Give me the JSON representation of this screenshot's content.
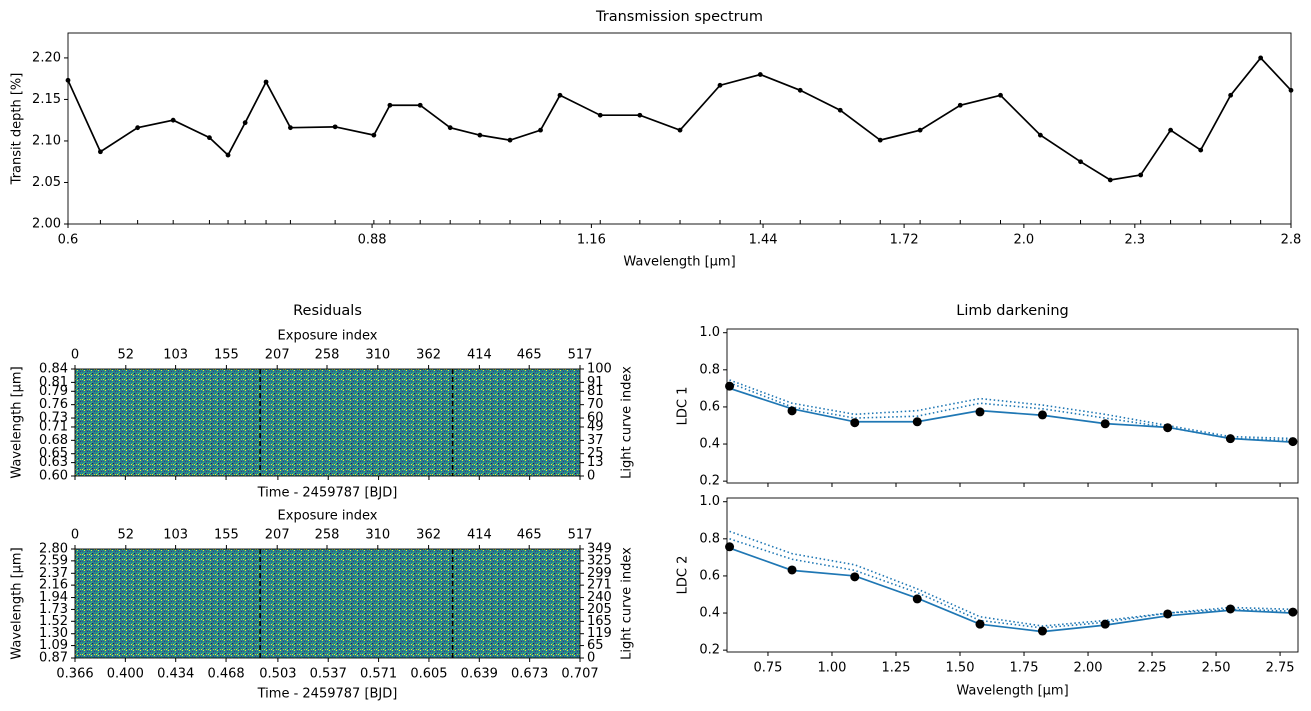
{
  "chart_data": [
    {
      "type": "line",
      "title": "Transmission spectrum",
      "xlabel": "Wavelength [μm]",
      "ylabel": "Transit depth [%]",
      "xscale": "log",
      "xlim": [
        0.6,
        2.8
      ],
      "ylim": [
        2.0,
        2.23
      ],
      "xticks": [
        0.6,
        0.88,
        1.16,
        1.44,
        1.72,
        {
          "value": 2,
          "label": "2.0"
        },
        2.3,
        2.8
      ],
      "yticks": [
        {
          "value": 2,
          "label": "2.00"
        },
        2.05,
        {
          "value": 2.1,
          "label": "2.10"
        },
        2.15,
        {
          "value": 2.2,
          "label": "2.20"
        }
      ],
      "x": [
        0.6,
        0.625,
        0.655,
        0.685,
        0.717,
        0.734,
        0.75,
        0.77,
        0.794,
        0.84,
        0.882,
        0.9,
        0.935,
        0.971,
        1.008,
        1.047,
        1.088,
        1.115,
        1.173,
        1.233,
        1.297,
        1.364,
        1.435,
        1.509,
        1.587,
        1.669,
        1.755,
        1.846,
        1.942,
        2.042,
        2.148,
        2.23,
        2.317,
        2.406,
        2.499,
        2.595,
        2.695,
        2.8
      ],
      "values": [
        2.173,
        2.087,
        2.116,
        2.125,
        2.104,
        2.083,
        2.122,
        2.171,
        2.116,
        2.117,
        2.107,
        2.143,
        2.143,
        2.116,
        2.107,
        2.101,
        2.113,
        2.155,
        2.131,
        2.131,
        2.113,
        2.167,
        2.18,
        2.161,
        2.137,
        2.101,
        2.113,
        2.143,
        2.155,
        2.107,
        2.075,
        2.053,
        2.059,
        2.113,
        2.089,
        2.155,
        2.2,
        2.161
      ],
      "color": "#000000",
      "markers": true,
      "rug": true
    },
    {
      "type": "heatmap",
      "title": "Residuals",
      "xlabel": "Time - 2459787 [BJD]",
      "ylabel": "Wavelength [μm]",
      "x2label": "Exposure index",
      "y2label": "Light curve index",
      "xlim": [
        0.366,
        0.707
      ],
      "x2lim": [
        0,
        517
      ],
      "x2ticks": [
        0,
        52,
        103,
        155,
        207,
        258,
        310,
        362,
        414,
        465,
        517
      ],
      "ylim": [
        0.6,
        0.84
      ],
      "yticks": [
        {
          "value": 0.6,
          "label": "0.60"
        },
        0.63,
        0.65,
        0.68,
        0.71,
        0.73,
        0.76,
        0.79,
        0.81,
        0.84
      ],
      "y2ticks": [
        0,
        13,
        25,
        37,
        49,
        60,
        70,
        81,
        91,
        100
      ],
      "vlines": [
        0.491,
        0.621
      ],
      "vline_color": "#000000"
    },
    {
      "type": "heatmap",
      "xlabel": "Time - 2459787 [BJD]",
      "ylabel": "Wavelength [μm]",
      "x2label": "Exposure index",
      "y2label": "Light curve index",
      "xlim": [
        0.366,
        0.707
      ],
      "xticks": [
        0.366,
        {
          "value": 0.4,
          "label": "0.400"
        },
        0.434,
        0.468,
        0.503,
        0.537,
        0.571,
        0.605,
        0.639,
        0.673,
        0.707
      ],
      "x2lim": [
        0,
        517
      ],
      "x2ticks": [
        0,
        52,
        103,
        155,
        207,
        258,
        310,
        362,
        414,
        465,
        517
      ],
      "ylim": [
        0.87,
        2.8
      ],
      "yticks": [
        0.87,
        1.09,
        {
          "value": 1.3,
          "label": "1.30"
        },
        1.52,
        1.73,
        1.94,
        2.16,
        2.37,
        2.59,
        {
          "value": 2.8,
          "label": "2.80"
        }
      ],
      "y2ticks": [
        0,
        65,
        119,
        165,
        205,
        240,
        271,
        299,
        325,
        349
      ],
      "vlines": [
        0.491,
        0.621
      ],
      "vline_color": "#000000"
    },
    {
      "type": "line",
      "title": "Limb darkening",
      "ylabel": "LDC 1",
      "xlim": [
        0.59,
        2.82
      ],
      "ylim": [
        0.19,
        1.02
      ],
      "yticks": [
        0.2,
        0.4,
        0.6,
        0.8,
        {
          "value": 1,
          "label": "1.0"
        }
      ],
      "x": [
        0.6,
        0.844,
        1.089,
        1.333,
        1.578,
        1.822,
        2.067,
        2.311,
        2.556,
        2.8
      ],
      "series": [
        {
          "color": "#1f77b4",
          "style": "dotted",
          "values": [
            0.745,
            0.62,
            0.56,
            0.58,
            0.645,
            0.61,
            0.56,
            0.5,
            0.44,
            0.43
          ]
        },
        {
          "color": "#1f77b4",
          "style": "dotted",
          "values": [
            0.73,
            0.6,
            0.54,
            0.55,
            0.62,
            0.59,
            0.54,
            0.49,
            0.43,
            0.42
          ]
        },
        {
          "color": "#1f77b4",
          "style": "solid",
          "values": [
            0.7,
            0.59,
            0.52,
            0.52,
            0.58,
            0.555,
            0.51,
            0.49,
            0.43,
            0.41
          ]
        },
        {
          "color": "#000000",
          "style": "markers",
          "values": [
            0.712,
            0.579,
            0.515,
            0.52,
            0.573,
            0.557,
            0.509,
            0.488,
            0.429,
            0.413
          ]
        }
      ]
    },
    {
      "type": "line",
      "ylabel": "LDC 2",
      "xlabel": "Wavelength [μm]",
      "xlim": [
        0.59,
        2.82
      ],
      "ylim": [
        0.19,
        1.02
      ],
      "xticks": [
        0.75,
        {
          "value": 1,
          "label": "1.00"
        },
        1.25,
        {
          "value": 1.5,
          "label": "1.50"
        },
        1.75,
        {
          "value": 2,
          "label": "2.00"
        },
        2.25,
        {
          "value": 2.5,
          "label": "2.50"
        },
        2.75
      ],
      "yticks": [
        0.2,
        0.4,
        0.6,
        0.8,
        {
          "value": 1,
          "label": "1.0"
        }
      ],
      "x": [
        0.6,
        0.844,
        1.089,
        1.333,
        1.578,
        1.822,
        2.067,
        2.311,
        2.556,
        2.8
      ],
      "series": [
        {
          "color": "#1f77b4",
          "style": "dotted",
          "values": [
            0.84,
            0.72,
            0.66,
            0.53,
            0.38,
            0.33,
            0.36,
            0.4,
            0.43,
            0.42
          ]
        },
        {
          "color": "#1f77b4",
          "style": "dotted",
          "values": [
            0.8,
            0.69,
            0.63,
            0.51,
            0.36,
            0.32,
            0.35,
            0.4,
            0.42,
            0.41
          ]
        },
        {
          "color": "#1f77b4",
          "style": "solid",
          "values": [
            0.75,
            0.63,
            0.6,
            0.48,
            0.34,
            0.3,
            0.335,
            0.385,
            0.415,
            0.4
          ]
        },
        {
          "color": "#000000",
          "style": "markers",
          "values": [
            0.757,
            0.632,
            0.595,
            0.476,
            0.34,
            0.303,
            0.34,
            0.395,
            0.422,
            0.405
          ]
        }
      ]
    }
  ]
}
